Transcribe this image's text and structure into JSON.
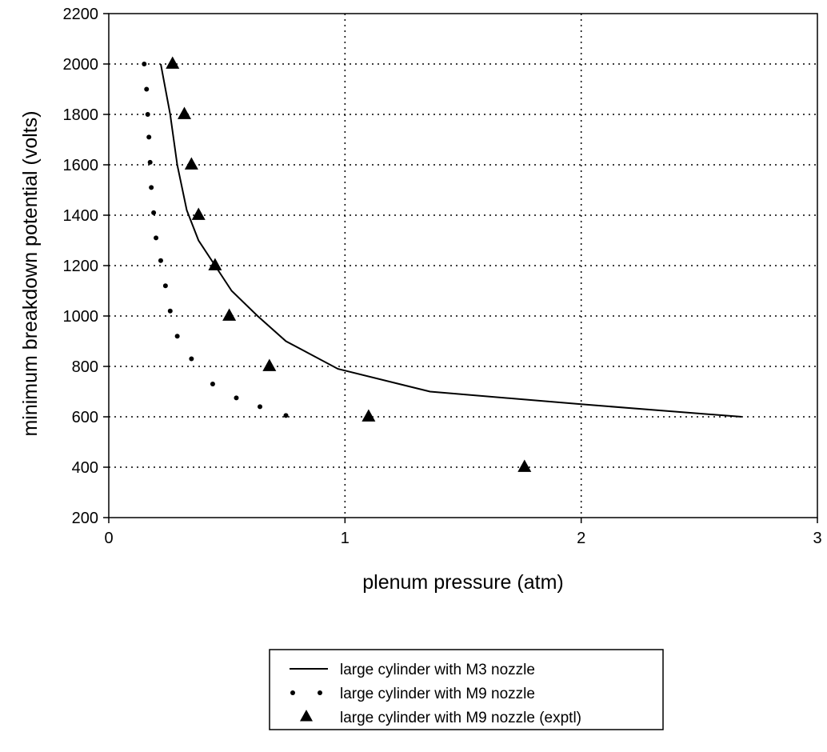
{
  "chart_data": {
    "type": "line",
    "title": "",
    "xlabel": "plenum pressure (atm)",
    "ylabel": "minimum breakdown potential (volts)",
    "xlim": [
      0,
      3
    ],
    "ylim": [
      200,
      2200
    ],
    "xticks": [
      0,
      1,
      2,
      3
    ],
    "yticks": [
      200,
      400,
      600,
      800,
      1000,
      1200,
      1400,
      1600,
      1800,
      2000,
      2200
    ],
    "grid": "dotted",
    "legend_position": "bottom",
    "series": [
      {
        "name": "large cylinder with M3 nozzle",
        "style": "solid-line",
        "points": [
          [
            0.22,
            2000
          ],
          [
            0.26,
            1800
          ],
          [
            0.29,
            1600
          ],
          [
            0.33,
            1420
          ],
          [
            0.38,
            1300
          ],
          [
            0.45,
            1200
          ],
          [
            0.52,
            1100
          ],
          [
            0.63,
            1000
          ],
          [
            0.75,
            900
          ],
          [
            0.97,
            790
          ],
          [
            1.36,
            700
          ],
          [
            2.0,
            650
          ],
          [
            2.68,
            600
          ]
        ]
      },
      {
        "name": "large cylinder with M9 nozzle",
        "style": "dots",
        "points": [
          [
            0.15,
            2000
          ],
          [
            0.16,
            1900
          ],
          [
            0.165,
            1800
          ],
          [
            0.17,
            1710
          ],
          [
            0.175,
            1610
          ],
          [
            0.18,
            1510
          ],
          [
            0.19,
            1410
          ],
          [
            0.2,
            1310
          ],
          [
            0.22,
            1220
          ],
          [
            0.24,
            1120
          ],
          [
            0.26,
            1020
          ],
          [
            0.29,
            920
          ],
          [
            0.35,
            830
          ],
          [
            0.44,
            730
          ],
          [
            0.54,
            675
          ],
          [
            0.64,
            640
          ],
          [
            0.75,
            605
          ]
        ]
      },
      {
        "name": "large cylinder with M9 nozzle (exptl)",
        "style": "triangles",
        "points": [
          [
            0.27,
            2000
          ],
          [
            0.32,
            1800
          ],
          [
            0.35,
            1600
          ],
          [
            0.38,
            1400
          ],
          [
            0.45,
            1200
          ],
          [
            0.51,
            1000
          ],
          [
            0.68,
            800
          ],
          [
            1.1,
            600
          ],
          [
            1.76,
            400
          ]
        ]
      }
    ]
  }
}
